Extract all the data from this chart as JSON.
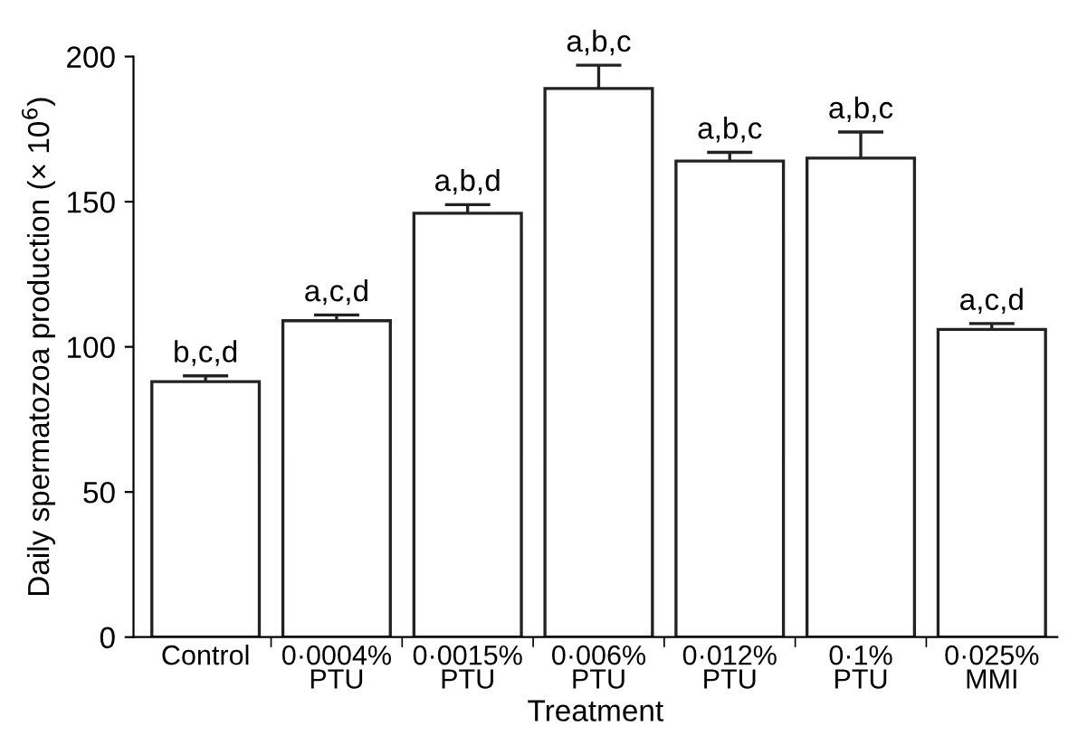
{
  "chart_data": {
    "type": "bar",
    "xlabel": "Treatment",
    "ylabel": "Daily spermatozoa production (× 10$^{6}$)",
    "categories": [
      "Control",
      "0·0004%\nPTU",
      "0·0015%\nPTU",
      "0·006%\nPTU",
      "0·012%\nPTU",
      "0·1%\nPTU",
      "0·025%\nMMI"
    ],
    "values": [
      88,
      109,
      146,
      189,
      164,
      165,
      106
    ],
    "errors": [
      2,
      2,
      3,
      8,
      3,
      9,
      2
    ],
    "color": "#ffffff",
    "ylim": [
      0,
      200
    ],
    "yticks": [
      0,
      50,
      100,
      150,
      200
    ],
    "grid": false,
    "annotations": [
      "b,c,d",
      "a,c,d",
      "a,b,d",
      "a,b,c",
      "a,b,c",
      "a,b,c",
      "a,c,d"
    ]
  }
}
